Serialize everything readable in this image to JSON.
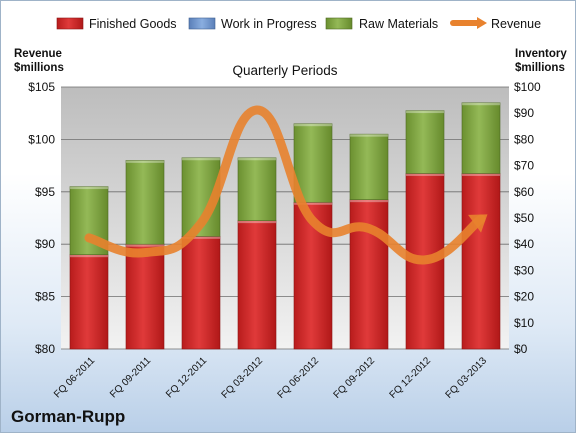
{
  "brand": "Gorman-Rupp",
  "colors": {
    "finished_goods": "#cc2222",
    "work_in_progress": "#6f95cc",
    "raw_materials": "#7ea23e",
    "revenue": "#e8822e"
  },
  "chart_data": {
    "type": "bar",
    "subtype": "stacked-bar with line overlay",
    "title": "Quarterly Periods",
    "categories": [
      "FQ 06-2011",
      "FQ 09-2011",
      "FQ 12-2011",
      "FQ 03-2012",
      "FQ 06-2012",
      "FQ 09-2012",
      "FQ 12-2012",
      "FQ 03-2013"
    ],
    "left_axis": {
      "label_line1": "Revenue",
      "label_line2": "$millions",
      "range": [
        80,
        105
      ],
      "ticks": [
        "$80",
        "$85",
        "$90",
        "$95",
        "$100",
        "$105"
      ]
    },
    "right_axis": {
      "label_line1": "Inventory",
      "label_line2": "$millions",
      "range": [
        0,
        100
      ],
      "ticks": [
        "$0",
        "$10",
        "$20",
        "$30",
        "$40",
        "$50",
        "$60",
        "$70",
        "$80",
        "$90",
        "$100"
      ]
    },
    "series": [
      {
        "name": "Finished Goods",
        "axis": "right",
        "kind": "bar",
        "values": [
          36,
          40,
          43,
          49,
          56,
          57,
          67,
          67
        ]
      },
      {
        "name": "Work in Progress",
        "axis": "right",
        "kind": "bar",
        "values": [
          0,
          0,
          0,
          0,
          0,
          0,
          0,
          0
        ]
      },
      {
        "name": "Raw Materials",
        "axis": "right",
        "kind": "bar",
        "values": [
          26,
          32,
          30,
          24,
          30,
          25,
          24,
          27
        ]
      },
      {
        "name": "Revenue",
        "axis": "left",
        "kind": "line",
        "values": [
          90.6,
          89.2,
          92.0,
          102.8,
          92.2,
          91.5,
          88.5,
          92.4
        ]
      }
    ],
    "legend_position": "top",
    "grid": true
  }
}
